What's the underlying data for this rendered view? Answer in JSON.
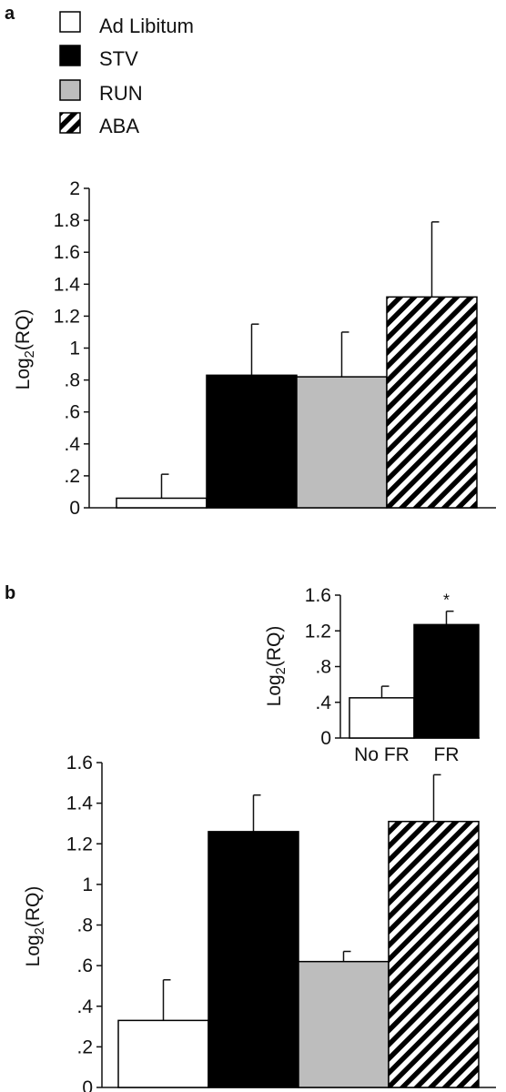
{
  "panels": {
    "a_label": "a",
    "b_label": "b"
  },
  "legend": {
    "items": [
      {
        "label": "Ad Libitum",
        "fill": "white"
      },
      {
        "label": "STV",
        "fill": "black"
      },
      {
        "label": "RUN",
        "fill": "gray"
      },
      {
        "label": "ABA",
        "fill": "hatch"
      }
    ]
  },
  "colors": {
    "black": "#000000",
    "gray": "#bdbdbd",
    "white": "#ffffff",
    "axis": "#111111"
  },
  "chart_data": [
    {
      "id": "panel-a",
      "type": "bar",
      "ylabel": "Log2(RQ)",
      "ylim": [
        0,
        2
      ],
      "yticks": [
        "0",
        ".2",
        ".4",
        ".6",
        ".8",
        "1",
        "1.2",
        "1.4",
        "1.6",
        "1.8",
        "2"
      ],
      "grid": false,
      "series": [
        {
          "name": "Ad Libitum",
          "fill": "white",
          "value": 0.06,
          "error": 0.15
        },
        {
          "name": "STV",
          "fill": "black",
          "value": 0.83,
          "error": 0.32
        },
        {
          "name": "RUN",
          "fill": "gray",
          "value": 0.82,
          "error": 0.28
        },
        {
          "name": "ABA",
          "fill": "hatch",
          "value": 1.32,
          "error": 0.47
        }
      ]
    },
    {
      "id": "panel-b",
      "type": "bar",
      "ylabel": "Log2(RQ)",
      "ylim": [
        0,
        1.6
      ],
      "yticks": [
        "0",
        ".2",
        ".4",
        ".6",
        ".8",
        "1",
        "1.2",
        "1.4",
        "1.6"
      ],
      "grid": false,
      "series": [
        {
          "name": "Ad Libitum",
          "fill": "white",
          "value": 0.33,
          "error": 0.2
        },
        {
          "name": "STV",
          "fill": "black",
          "value": 1.26,
          "error": 0.18
        },
        {
          "name": "RUN",
          "fill": "gray",
          "value": 0.62,
          "error": 0.05
        },
        {
          "name": "ABA",
          "fill": "hatch",
          "value": 1.31,
          "error": 0.23
        }
      ]
    },
    {
      "id": "panel-b-inset",
      "type": "bar",
      "ylabel": "Log2(RQ)",
      "ylim": [
        0,
        1.6
      ],
      "yticks": [
        "0",
        ".4",
        ".8",
        "1.2",
        "1.6"
      ],
      "grid": false,
      "categories": [
        "No FR",
        "FR"
      ],
      "series": [
        {
          "name": "No FR",
          "fill": "white",
          "value": 0.45,
          "error": 0.13
        },
        {
          "name": "FR",
          "fill": "black",
          "value": 1.27,
          "error": 0.15,
          "annotation": "*"
        }
      ]
    }
  ]
}
